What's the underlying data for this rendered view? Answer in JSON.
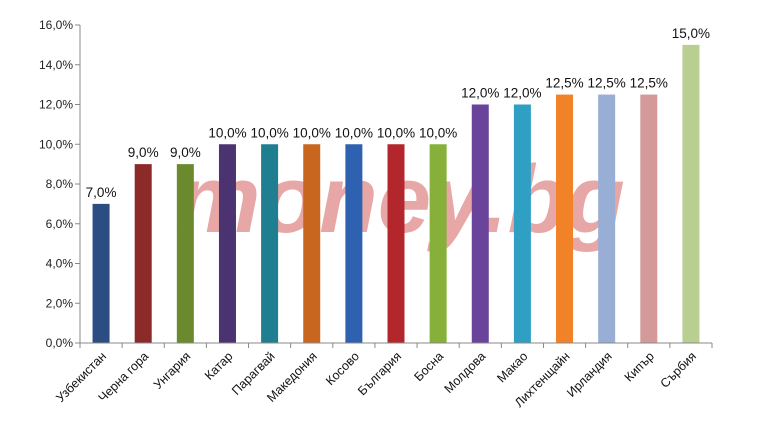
{
  "chart_data": {
    "type": "bar",
    "title": "",
    "xlabel": "",
    "ylabel": "",
    "ylim": [
      0,
      16
    ],
    "ytick_step": 2,
    "y_tick_labels": [
      "0,0%",
      "2,0%",
      "4,0%",
      "6,0%",
      "8,0%",
      "10,0%",
      "12,0%",
      "14,0%",
      "16,0%"
    ],
    "grid": false,
    "legend": "none",
    "watermark": "money.bg",
    "categories": [
      "Узбекистан",
      "Черна гора",
      "Унгария",
      "Катар",
      "Парагвай",
      "Македония",
      "Косово",
      "България",
      "Босна",
      "Молдова",
      "Макао",
      "Лихтенщайн",
      "Ирландия",
      "Кипър",
      "Сърбия"
    ],
    "values": [
      7.0,
      9.0,
      9.0,
      10.0,
      10.0,
      10.0,
      10.0,
      10.0,
      10.0,
      12.0,
      12.0,
      12.5,
      12.5,
      12.5,
      15.0
    ],
    "data_labels": [
      "7,0%",
      "9,0%",
      "9,0%",
      "10,0%",
      "10,0%",
      "10,0%",
      "10,0%",
      "10,0%",
      "10,0%",
      "12,0%",
      "12,0%",
      "12,5%",
      "12,5%",
      "12,5%",
      "15,0%"
    ],
    "colors": [
      "#2c4d82",
      "#8c2a2a",
      "#6b8a2e",
      "#4b3270",
      "#1f7f91",
      "#c8651f",
      "#2e62b0",
      "#b3262c",
      "#86b03a",
      "#6a449a",
      "#2f9fc4",
      "#f28228",
      "#98aed4",
      "#d49a9a",
      "#b9cf92"
    ]
  }
}
